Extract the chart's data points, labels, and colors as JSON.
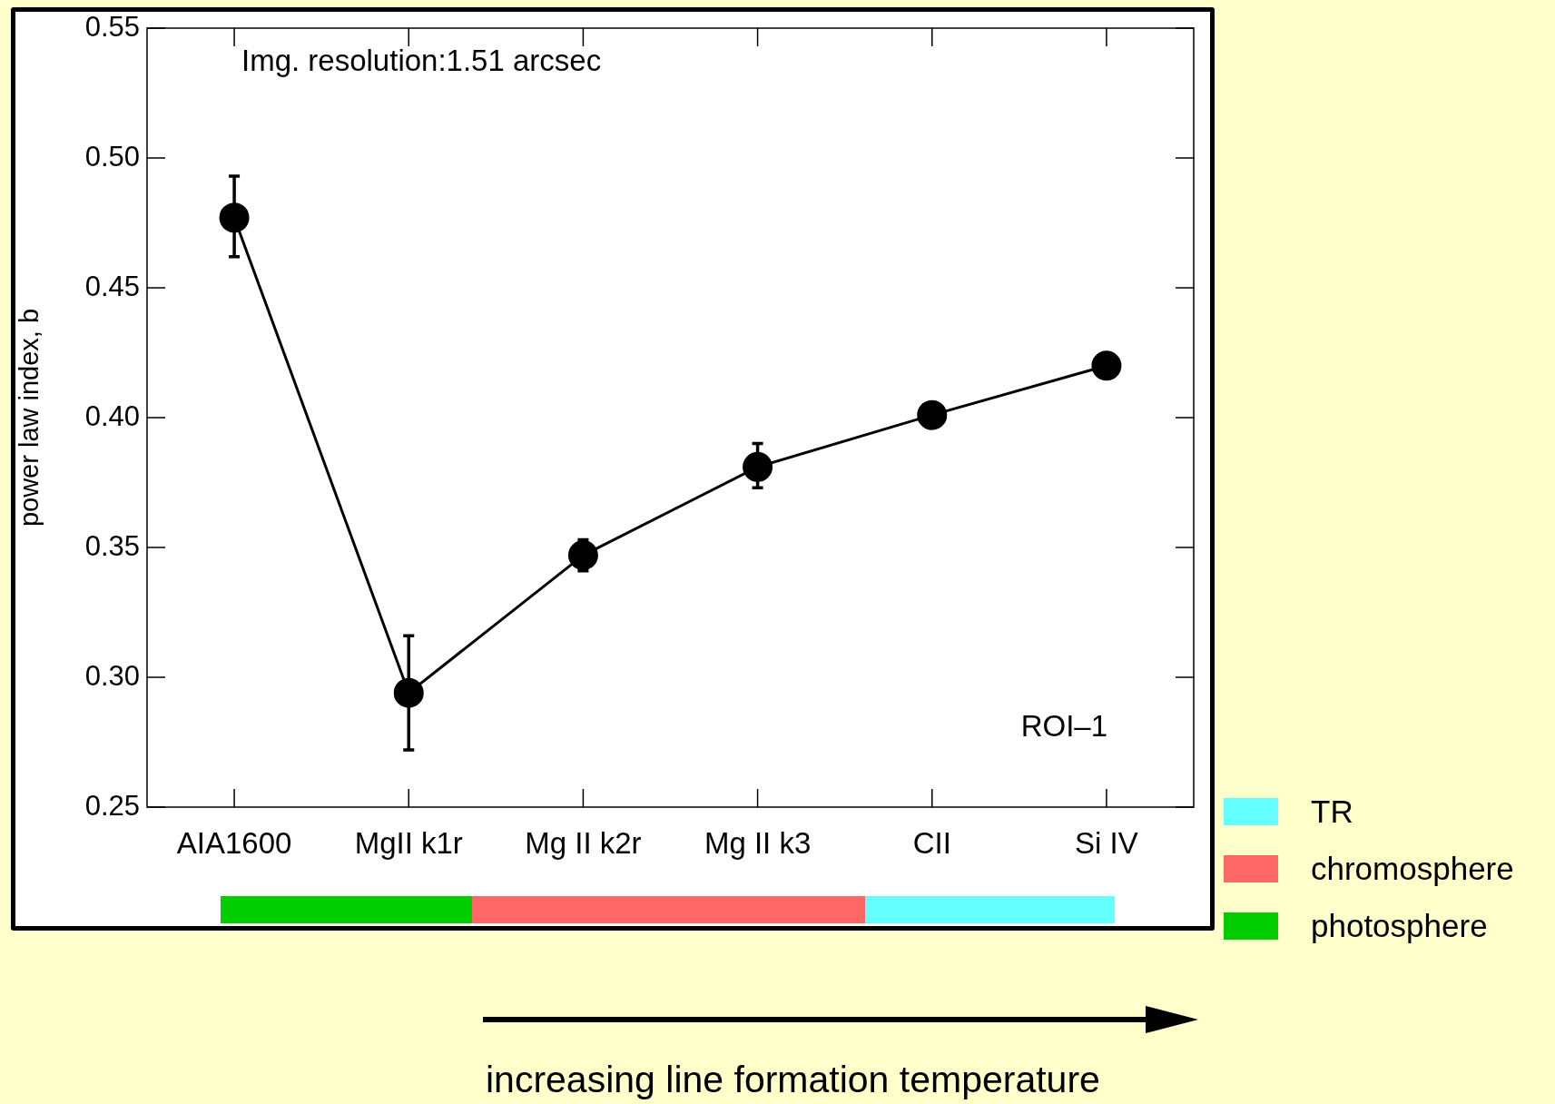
{
  "chart_data": {
    "type": "line",
    "ylabel": "power law index, b",
    "categories": [
      "AIA1600",
      "MgII k1r",
      "Mg II k2r",
      "Mg II k3",
      "CII",
      "Si IV"
    ],
    "series": [
      {
        "color": "#000000",
        "values": [
          0.477,
          0.294,
          0.347,
          0.381,
          0.401,
          0.42
        ],
        "errors": [
          [
            0.462,
            0.493
          ],
          [
            0.272,
            0.316
          ],
          [
            0.341,
            0.353
          ],
          [
            0.373,
            0.39
          ],
          null,
          null
        ]
      }
    ],
    "ylim": [
      0.25,
      0.55
    ],
    "yticks": [
      {
        "value": 0.25,
        "label": "0.25"
      },
      {
        "value": 0.3,
        "label": "0.30"
      },
      {
        "value": 0.35,
        "label": "0.35"
      },
      {
        "value": 0.4,
        "label": "0.40"
      },
      {
        "value": 0.45,
        "label": "0.45"
      },
      {
        "value": 0.5,
        "label": "0.50"
      },
      {
        "value": 0.55,
        "label": "0.55"
      }
    ],
    "marker": "circle",
    "line_style": "solid",
    "grid": false,
    "annotations": [
      "Img. resolution:1.51 arcsec",
      "ROI–1",
      "TR",
      "chromosphere",
      "photosphere",
      "increasing line formation temperature"
    ]
  }
}
